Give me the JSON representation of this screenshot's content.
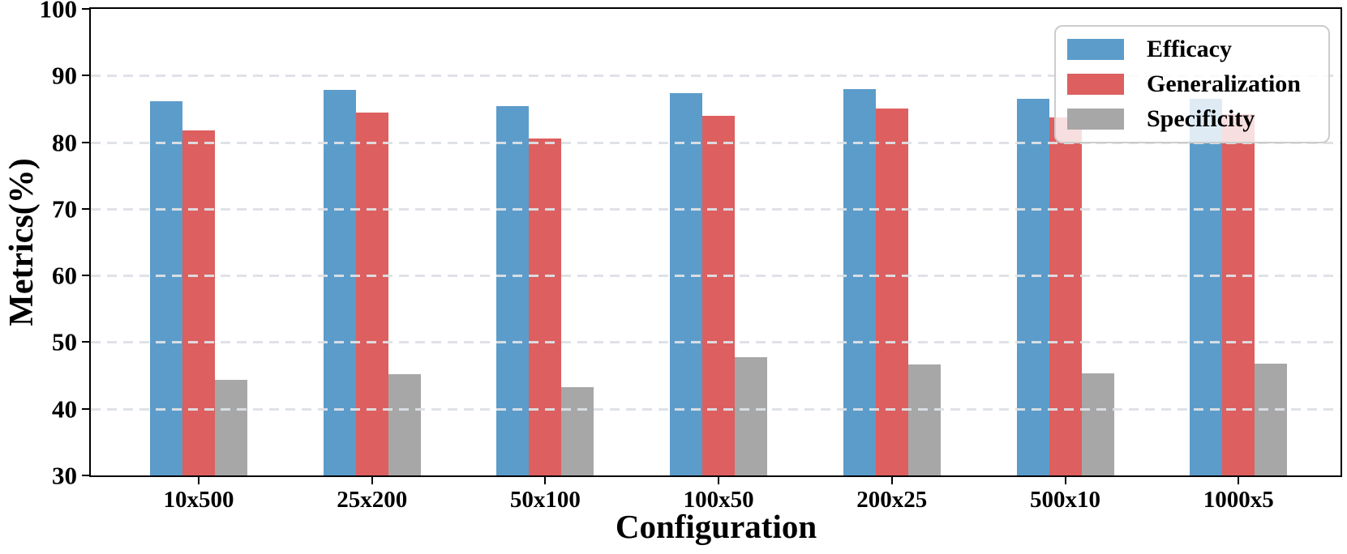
{
  "figure": {
    "background": "#ffffff"
  },
  "chart_data": {
    "type": "bar",
    "title": "",
    "xlabel": "Configuration",
    "ylabel": "Metrics(%)",
    "categories": [
      "10x500",
      "25x200",
      "50x100",
      "100x50",
      "200x25",
      "500x10",
      "1000x5"
    ],
    "series": [
      {
        "name": "Efficacy",
        "color": "#5c9cca",
        "values": [
          86.1,
          87.9,
          85.4,
          87.4,
          88.0,
          86.5,
          86.5
        ]
      },
      {
        "name": "Generalization",
        "color": "#dd5f5f",
        "values": [
          81.8,
          84.5,
          80.6,
          84.0,
          85.1,
          83.7,
          84.2
        ]
      },
      {
        "name": "Specificity",
        "color": "#a7a7a7",
        "values": [
          44.4,
          45.2,
          43.3,
          47.8,
          46.7,
          45.3,
          46.8
        ]
      }
    ],
    "ylim": [
      30,
      100
    ],
    "yticks": [
      30,
      40,
      50,
      60,
      70,
      80,
      90,
      100
    ],
    "grid": "horizontal-dashed-over-bars",
    "legend_position": "top-right",
    "colors": {
      "axis": "#000000",
      "grid": "#dde1e5",
      "legend_border": "#cccccc",
      "legend_background": "rgba(255,255,255,0.8)",
      "text": "#000000"
    }
  }
}
